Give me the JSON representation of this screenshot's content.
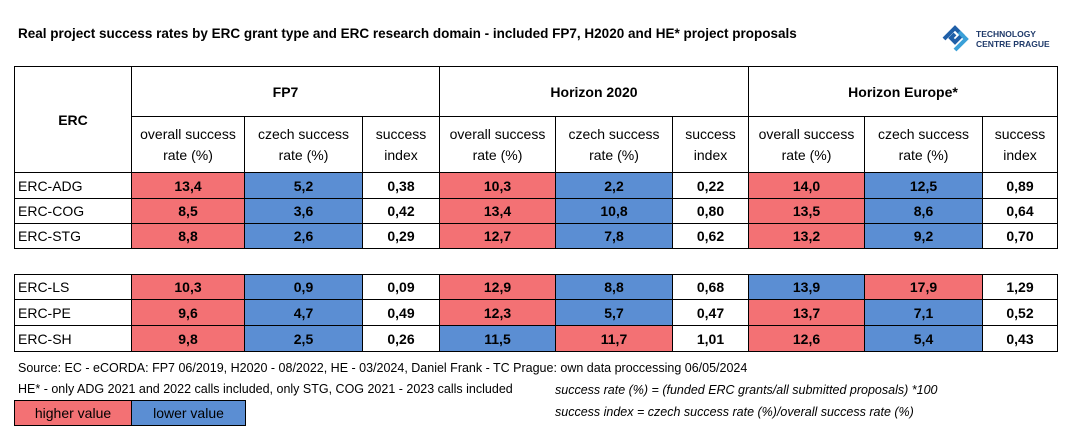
{
  "title": "Real project success rates by ERC grant type and ERC research domain - included FP7, H2020 and HE* project proposals",
  "logo": {
    "line1": "TECHNOLOGY",
    "line2": "CENTRE PRAGUE"
  },
  "table": {
    "corner": "ERC",
    "groups": [
      "FP7",
      "Horizon 2020",
      "Horizon Europe*"
    ],
    "subheaders": [
      "overall success rate (%)",
      "czech success rate (%)",
      "success index",
      "overall success rate (%)",
      "czech success rate (%)",
      "success index",
      "overall success rate (%)",
      "czech success rate (%)",
      "success index"
    ],
    "blocks": [
      [
        {
          "label": "ERC-ADG",
          "cells": [
            {
              "text": "13,4",
              "fill": "higher"
            },
            {
              "text": "5,2",
              "fill": "lower"
            },
            {
              "text": "0,38"
            },
            {
              "text": "10,3",
              "fill": "higher"
            },
            {
              "text": "2,2",
              "fill": "lower"
            },
            {
              "text": "0,22"
            },
            {
              "text": "14,0",
              "fill": "higher"
            },
            {
              "text": "12,5",
              "fill": "lower"
            },
            {
              "text": "0,89"
            }
          ]
        },
        {
          "label": "ERC-COG",
          "cells": [
            {
              "text": "8,5",
              "fill": "higher"
            },
            {
              "text": "3,6",
              "fill": "lower"
            },
            {
              "text": "0,42"
            },
            {
              "text": "13,4",
              "fill": "higher"
            },
            {
              "text": "10,8",
              "fill": "lower"
            },
            {
              "text": "0,80"
            },
            {
              "text": "13,5",
              "fill": "higher"
            },
            {
              "text": "8,6",
              "fill": "lower"
            },
            {
              "text": "0,64"
            }
          ]
        },
        {
          "label": "ERC-STG",
          "cells": [
            {
              "text": "8,8",
              "fill": "higher"
            },
            {
              "text": "2,6",
              "fill": "lower"
            },
            {
              "text": "0,29"
            },
            {
              "text": "12,7",
              "fill": "higher"
            },
            {
              "text": "7,8",
              "fill": "lower"
            },
            {
              "text": "0,62"
            },
            {
              "text": "13,2",
              "fill": "higher"
            },
            {
              "text": "9,2",
              "fill": "lower"
            },
            {
              "text": "0,70"
            }
          ]
        }
      ],
      [
        {
          "label": "ERC-LS",
          "cells": [
            {
              "text": "10,3",
              "fill": "higher"
            },
            {
              "text": "0,9",
              "fill": "lower"
            },
            {
              "text": "0,09"
            },
            {
              "text": "12,9",
              "fill": "higher"
            },
            {
              "text": "8,8",
              "fill": "lower"
            },
            {
              "text": "0,68"
            },
            {
              "text": "13,9",
              "fill": "lower"
            },
            {
              "text": "17,9",
              "fill": "higher"
            },
            {
              "text": "1,29"
            }
          ]
        },
        {
          "label": "ERC-PE",
          "cells": [
            {
              "text": "9,6",
              "fill": "higher"
            },
            {
              "text": "4,7",
              "fill": "lower"
            },
            {
              "text": "0,49"
            },
            {
              "text": "12,3",
              "fill": "higher"
            },
            {
              "text": "5,7",
              "fill": "lower"
            },
            {
              "text": "0,47"
            },
            {
              "text": "13,7",
              "fill": "higher"
            },
            {
              "text": "7,1",
              "fill": "lower"
            },
            {
              "text": "0,52"
            }
          ]
        },
        {
          "label": "ERC-SH",
          "cells": [
            {
              "text": "9,8",
              "fill": "higher"
            },
            {
              "text": "2,5",
              "fill": "lower"
            },
            {
              "text": "0,26"
            },
            {
              "text": "11,5",
              "fill": "lower"
            },
            {
              "text": "11,7",
              "fill": "higher"
            },
            {
              "text": "1,01"
            },
            {
              "text": "12,6",
              "fill": "higher"
            },
            {
              "text": "5,4",
              "fill": "lower"
            },
            {
              "text": "0,43"
            }
          ]
        }
      ]
    ]
  },
  "footer": {
    "source": "Source: EC - eCORDA: FP7 06/2019, H2020 - 08/2022, HE - 03/2024, Daniel Frank - TC Prague: own data proccessing 06/05/2024",
    "note": "HE* - only ADG 2021 and 2022 calls included, only STG, COG 2021 - 2023 calls included",
    "formula1": "success rate (%) = (funded ERC grants/all submitted proposals) *100",
    "formula2": "success index = czech success rate (%)/overall success rate (%)"
  },
  "legend": {
    "higher": {
      "label": "higher value",
      "color": "#f37174"
    },
    "lower": {
      "label": "lower value",
      "color": "#5b8ed3"
    }
  }
}
